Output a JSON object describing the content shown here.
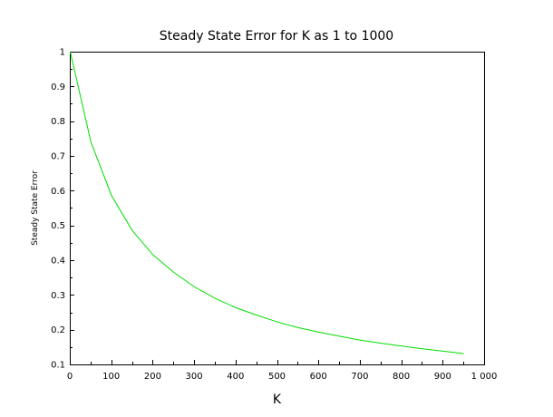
{
  "chart_data": {
    "type": "line",
    "title": "Steady State Error for K as 1 to 1000",
    "xlabel": "K",
    "ylabel": "Steady State Error",
    "xlim": [
      0,
      1000
    ],
    "ylim": [
      0.1,
      1
    ],
    "x_ticks": [
      0,
      100,
      200,
      300,
      400,
      500,
      600,
      700,
      800,
      900,
      1000
    ],
    "x_tick_labels": [
      "0",
      "100",
      "200",
      "300",
      "400",
      "500",
      "600",
      "700",
      "800",
      "900",
      "1 000"
    ],
    "y_ticks": [
      0.1,
      0.2,
      0.3,
      0.4,
      0.5,
      0.6,
      0.7,
      0.8,
      0.9,
      1
    ],
    "y_tick_labels": [
      "0.1",
      "0.2",
      "0.3",
      "0.4",
      "0.5",
      "0.6",
      "0.7",
      "0.8",
      "0.9",
      "1"
    ],
    "grid": false,
    "legend": "none",
    "series": [
      {
        "color": "#00dd00",
        "x": [
          1,
          51,
          101,
          151,
          201,
          251,
          301,
          351,
          401,
          451,
          501,
          551,
          601,
          651,
          701,
          751,
          801,
          851,
          901,
          951
        ],
        "y": [
          1.0,
          0.74,
          0.585,
          0.485,
          0.415,
          0.365,
          0.323,
          0.29,
          0.263,
          0.242,
          0.222,
          0.206,
          0.193,
          0.181,
          0.17,
          0.161,
          0.153,
          0.145,
          0.138,
          0.131
        ]
      }
    ]
  }
}
